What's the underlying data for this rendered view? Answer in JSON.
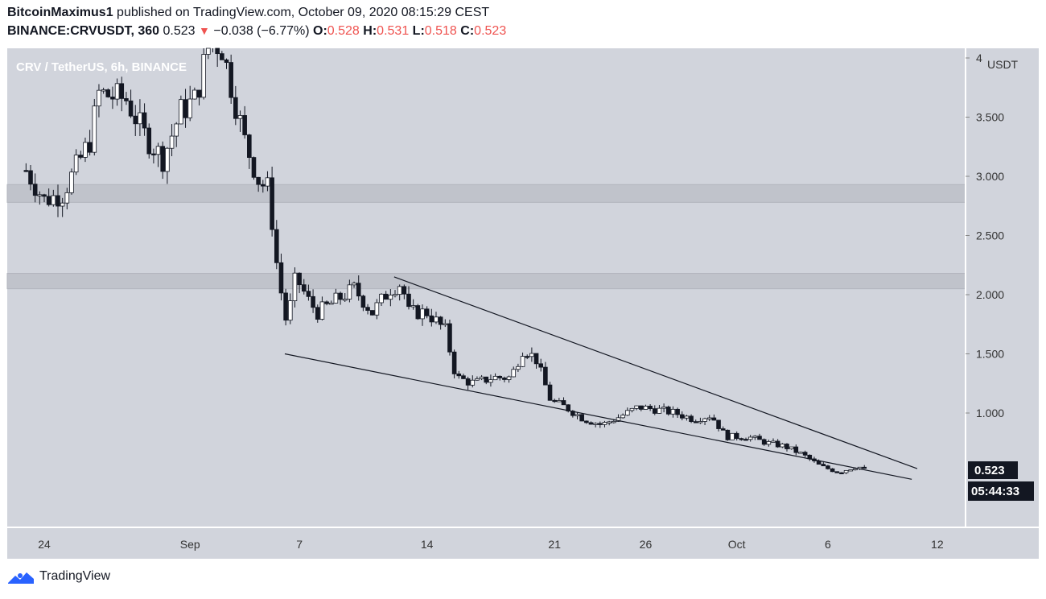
{
  "header": {
    "publisher": "BitcoinMaximus1",
    "published_text": "published on TradingView.com, October 09, 2020 08:15:29 CEST",
    "symbol": "BINANCE:CRVUSDT, 360",
    "last": "0.523",
    "arrow": "▼",
    "change": "−0.038 (−6.77%)",
    "o_label": "O:",
    "o_value": "0.528",
    "h_label": "H:",
    "h_value": "0.531",
    "l_label": "L:",
    "l_value": "0.518",
    "c_label": "C:",
    "c_value": "0.523"
  },
  "chart_title": "CRV / TetherUS, 6h, BINANCE",
  "price_tag": "0.523",
  "countdown_tag": "05:44:33",
  "footer": {
    "brand": "TradingView"
  },
  "colors": {
    "plot_bg": "#d1d4dc",
    "zone": "#c0c3cb",
    "bull": "#ffffff",
    "bear": "#131722",
    "down": "#ef5350",
    "tag_bg": "#131722",
    "brand": "#2962ff"
  },
  "chart_data": {
    "type": "candlestick",
    "title": "CRV / TetherUS, 6h, BINANCE",
    "ylabel": "USDT",
    "ylim": [
      0,
      4.08
    ],
    "y_ticks": [
      "4",
      "3.500",
      "3.000",
      "2.500",
      "2.000",
      "1.500",
      "1.000"
    ],
    "y_tick_values": [
      4.0,
      3.5,
      3.0,
      2.5,
      2.0,
      1.5,
      1.0
    ],
    "x_ticks": [
      "24",
      "Sep",
      "7",
      "14",
      "21",
      "26",
      "Oct",
      "6",
      "12"
    ],
    "x_tick_days": [
      24,
      32,
      38,
      45,
      52,
      57,
      62,
      67,
      73
    ],
    "x_unit": "day (Aug = 1-31, Sep = 32-61, Oct = 62+)",
    "resistance_zones": [
      {
        "low": 2.78,
        "high": 2.93
      },
      {
        "low": 2.05,
        "high": 2.18
      }
    ],
    "trendlines": [
      {
        "name": "upper",
        "from": {
          "day": 43.2,
          "price": 2.15
        },
        "to": {
          "day": 71.9,
          "price": 0.53
        }
      },
      {
        "name": "lower",
        "from": {
          "day": 37.2,
          "price": 1.5
        },
        "to": {
          "day": 71.6,
          "price": 0.44
        }
      }
    ],
    "anchors": [
      [
        23.0,
        3.05
      ],
      [
        24.0,
        2.8
      ],
      [
        25.0,
        2.85
      ],
      [
        26.5,
        3.3
      ],
      [
        27.0,
        3.7
      ],
      [
        28.5,
        3.65
      ],
      [
        29.5,
        3.35
      ],
      [
        30.5,
        3.15
      ],
      [
        31.5,
        3.55
      ],
      [
        32.3,
        3.65
      ],
      [
        33.0,
        4.1
      ],
      [
        33.7,
        4.12
      ],
      [
        34.2,
        3.8
      ],
      [
        35.0,
        3.3
      ],
      [
        35.8,
        2.95
      ],
      [
        36.3,
        2.9
      ],
      [
        36.8,
        2.2
      ],
      [
        37.3,
        1.75
      ],
      [
        37.8,
        2.15
      ],
      [
        38.5,
        1.95
      ],
      [
        39.0,
        1.85
      ],
      [
        40.0,
        1.95
      ],
      [
        41.0,
        2.05
      ],
      [
        42.0,
        1.85
      ],
      [
        43.0,
        2.05
      ],
      [
        43.6,
        2.1
      ],
      [
        44.0,
        1.85
      ],
      [
        45.0,
        1.85
      ],
      [
        46.0,
        1.7
      ],
      [
        46.6,
        1.3
      ],
      [
        47.6,
        1.25
      ],
      [
        48.6,
        1.3
      ],
      [
        49.6,
        1.3
      ],
      [
        50.3,
        1.55
      ],
      [
        51.0,
        1.45
      ],
      [
        51.8,
        1.1
      ],
      [
        52.6,
        1.05
      ],
      [
        53.6,
        0.95
      ],
      [
        54.6,
        0.9
      ],
      [
        55.6,
        0.97
      ],
      [
        56.6,
        1.05
      ],
      [
        57.6,
        1.03
      ],
      [
        58.6,
        1.0
      ],
      [
        59.6,
        0.95
      ],
      [
        60.6,
        0.98
      ],
      [
        61.4,
        0.8
      ],
      [
        62.6,
        0.8
      ],
      [
        63.6,
        0.75
      ],
      [
        64.6,
        0.72
      ],
      [
        65.6,
        0.65
      ],
      [
        66.6,
        0.55
      ],
      [
        67.6,
        0.5
      ],
      [
        68.6,
        0.55
      ],
      [
        69.1,
        0.523
      ]
    ]
  }
}
